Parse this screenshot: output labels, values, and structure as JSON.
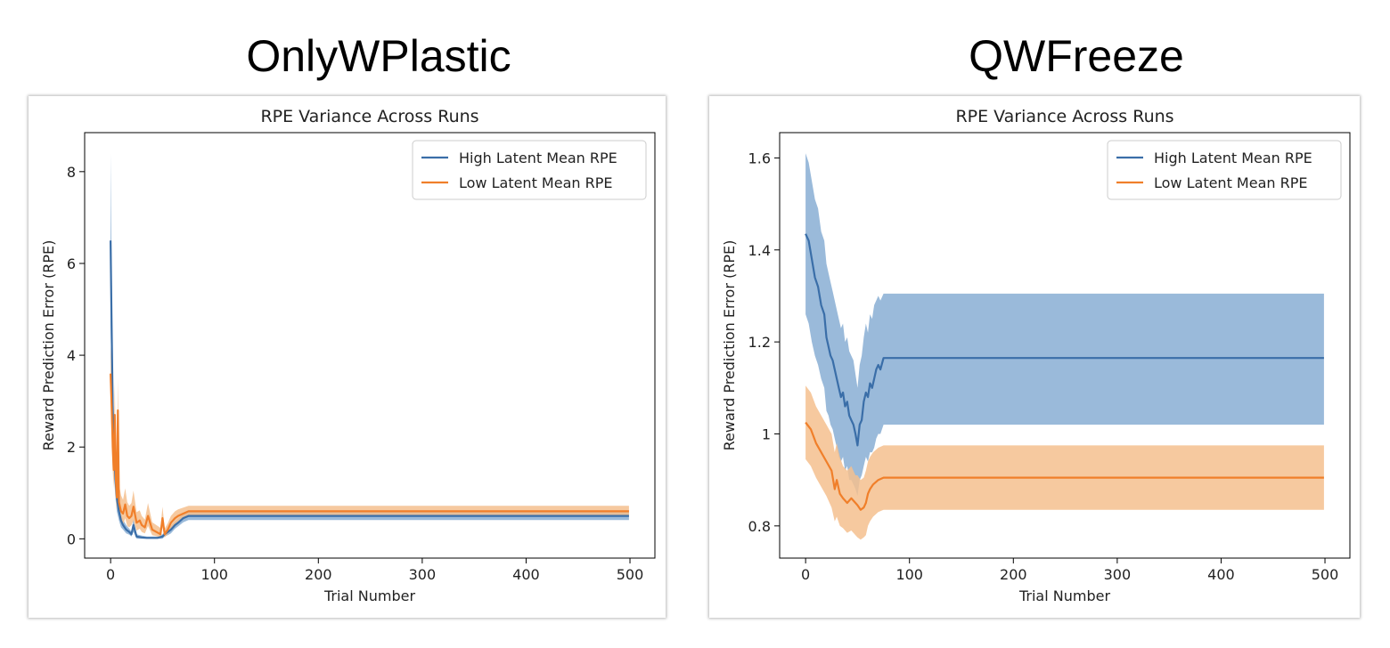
{
  "figure": {
    "left_title": "OnlyWPlastic",
    "right_title": "QWFreeze"
  },
  "colors": {
    "high": "#3a6ea8",
    "low": "#f07f2a",
    "high_band": "#8fb2d6",
    "low_band": "#f5c08e"
  },
  "chart_data": [
    {
      "type": "line",
      "title": "RPE Variance Across Runs",
      "xlabel": "Trial Number",
      "ylabel": "Reward Prediction Error (RPE)",
      "xlim": [
        -25,
        524
      ],
      "ylim": [
        -0.42,
        8.85
      ],
      "xticks": [
        0,
        100,
        200,
        300,
        400,
        500
      ],
      "yticks": [
        0,
        2,
        4,
        6,
        8
      ],
      "legend_position": "top-right",
      "grid": false,
      "series": [
        {
          "name": "High Latent Mean RPE",
          "x": [
            0,
            1,
            2,
            3,
            4,
            5,
            6,
            8,
            10,
            12,
            15,
            18,
            20,
            22,
            25,
            30,
            35,
            40,
            45,
            50,
            52,
            55,
            58,
            60,
            62,
            65,
            70,
            75,
            80,
            100,
            200,
            300,
            400,
            499
          ],
          "y": [
            6.5,
            4.6,
            2.9,
            2.0,
            1.6,
            1.2,
            0.9,
            0.6,
            0.4,
            0.3,
            0.2,
            0.15,
            0.1,
            0.3,
            0.05,
            0.03,
            0.02,
            0.02,
            0.02,
            0.05,
            0.1,
            0.15,
            0.2,
            0.25,
            0.3,
            0.35,
            0.45,
            0.5,
            0.5,
            0.5,
            0.5,
            0.5,
            0.5,
            0.5
          ],
          "band_lower": [
            4.7,
            3.3,
            2.0,
            1.4,
            1.1,
            0.8,
            0.6,
            0.4,
            0.25,
            0.2,
            0.12,
            0.09,
            0.05,
            0.15,
            0.0,
            0.0,
            0.0,
            0.0,
            0.0,
            0.0,
            0.05,
            0.08,
            0.12,
            0.17,
            0.22,
            0.27,
            0.36,
            0.41,
            0.41,
            0.41,
            0.41,
            0.41,
            0.41,
            0.41
          ],
          "band_upper": [
            8.4,
            5.9,
            3.8,
            2.6,
            2.1,
            1.6,
            1.2,
            0.8,
            0.55,
            0.42,
            0.3,
            0.22,
            0.16,
            0.45,
            0.1,
            0.07,
            0.05,
            0.05,
            0.05,
            0.1,
            0.16,
            0.22,
            0.28,
            0.33,
            0.38,
            0.44,
            0.54,
            0.59,
            0.59,
            0.59,
            0.59,
            0.59,
            0.59,
            0.59
          ]
        },
        {
          "name": "Low Latent Mean RPE",
          "x": [
            0,
            1,
            2,
            3,
            4,
            5,
            6,
            7,
            8,
            10,
            12,
            14,
            16,
            18,
            20,
            22,
            25,
            28,
            30,
            33,
            36,
            40,
            44,
            48,
            50,
            52,
            55,
            58,
            60,
            62,
            65,
            70,
            75,
            80,
            100,
            200,
            300,
            400,
            499
          ],
          "y": [
            3.6,
            2.9,
            2.0,
            1.5,
            2.7,
            1.3,
            0.9,
            2.8,
            0.8,
            0.6,
            0.55,
            0.75,
            0.5,
            0.45,
            0.5,
            0.7,
            0.35,
            0.4,
            0.3,
            0.25,
            0.5,
            0.2,
            0.15,
            0.1,
            0.45,
            0.1,
            0.2,
            0.35,
            0.4,
            0.45,
            0.5,
            0.55,
            0.6,
            0.6,
            0.6,
            0.6,
            0.6,
            0.6,
            0.6
          ],
          "band_lower": [
            3.0,
            2.3,
            1.5,
            1.1,
            2.0,
            0.9,
            0.6,
            2.0,
            0.5,
            0.35,
            0.3,
            0.45,
            0.28,
            0.25,
            0.3,
            0.4,
            0.18,
            0.22,
            0.15,
            0.12,
            0.28,
            0.08,
            0.06,
            0.03,
            0.25,
            0.03,
            0.1,
            0.22,
            0.27,
            0.32,
            0.38,
            0.44,
            0.49,
            0.49,
            0.49,
            0.49,
            0.49,
            0.49,
            0.49
          ],
          "band_upper": [
            4.2,
            3.5,
            2.6,
            2.0,
            3.4,
            1.8,
            1.3,
            3.5,
            1.2,
            0.95,
            0.85,
            1.1,
            0.8,
            0.72,
            0.78,
            1.05,
            0.58,
            0.62,
            0.5,
            0.42,
            0.78,
            0.36,
            0.3,
            0.24,
            0.7,
            0.22,
            0.34,
            0.5,
            0.55,
            0.6,
            0.64,
            0.68,
            0.72,
            0.72,
            0.72,
            0.72,
            0.72,
            0.72,
            0.72
          ]
        }
      ]
    },
    {
      "type": "line",
      "title": "RPE Variance Across Runs",
      "xlabel": "Trial Number",
      "ylabel": "Reward Prediction Error (RPE)",
      "xlim": [
        -25,
        524
      ],
      "ylim": [
        0.73,
        1.655
      ],
      "xticks": [
        0,
        100,
        200,
        300,
        400,
        500
      ],
      "yticks": [
        0.8,
        1.0,
        1.2,
        1.4,
        1.6
      ],
      "legend_position": "top-right",
      "grid": false,
      "series": [
        {
          "name": "High Latent Mean RPE",
          "x": [
            0,
            3,
            6,
            9,
            12,
            15,
            18,
            20,
            22,
            24,
            26,
            28,
            30,
            32,
            34,
            36,
            38,
            40,
            42,
            44,
            46,
            48,
            50,
            52,
            54,
            56,
            58,
            60,
            62,
            64,
            66,
            68,
            70,
            72,
            75,
            80,
            100,
            200,
            300,
            400,
            499
          ],
          "y": [
            1.435,
            1.42,
            1.38,
            1.34,
            1.32,
            1.28,
            1.26,
            1.21,
            1.19,
            1.17,
            1.16,
            1.14,
            1.12,
            1.1,
            1.08,
            1.09,
            1.06,
            1.07,
            1.04,
            1.03,
            1.02,
            1.0,
            0.975,
            1.02,
            1.03,
            1.07,
            1.09,
            1.08,
            1.11,
            1.1,
            1.12,
            1.14,
            1.15,
            1.14,
            1.165,
            1.165,
            1.165,
            1.165,
            1.165,
            1.165,
            1.165
          ],
          "band_lower": [
            1.26,
            1.24,
            1.2,
            1.17,
            1.15,
            1.12,
            1.1,
            1.05,
            1.04,
            1.02,
            1.01,
            0.99,
            0.97,
            0.95,
            0.94,
            0.95,
            0.92,
            0.93,
            0.9,
            0.9,
            0.89,
            0.88,
            0.865,
            0.9,
            0.91,
            0.93,
            0.95,
            0.94,
            0.96,
            0.96,
            0.97,
            0.99,
            1.0,
            1.0,
            1.02,
            1.02,
            1.02,
            1.02,
            1.02,
            1.02,
            1.02
          ],
          "band_upper": [
            1.61,
            1.59,
            1.55,
            1.51,
            1.49,
            1.44,
            1.42,
            1.37,
            1.35,
            1.33,
            1.31,
            1.29,
            1.27,
            1.25,
            1.23,
            1.24,
            1.2,
            1.21,
            1.18,
            1.17,
            1.16,
            1.13,
            1.1,
            1.15,
            1.17,
            1.21,
            1.24,
            1.22,
            1.26,
            1.25,
            1.28,
            1.29,
            1.3,
            1.29,
            1.305,
            1.305,
            1.305,
            1.305,
            1.305,
            1.305,
            1.305
          ]
        },
        {
          "name": "Low Latent Mean RPE",
          "x": [
            0,
            5,
            10,
            15,
            20,
            25,
            28,
            30,
            33,
            36,
            40,
            44,
            48,
            50,
            53,
            56,
            58,
            60,
            62,
            65,
            70,
            75,
            80,
            100,
            200,
            300,
            400,
            499
          ],
          "y": [
            1.025,
            1.01,
            0.98,
            0.96,
            0.94,
            0.92,
            0.88,
            0.9,
            0.87,
            0.86,
            0.85,
            0.86,
            0.85,
            0.845,
            0.835,
            0.84,
            0.85,
            0.87,
            0.88,
            0.89,
            0.9,
            0.905,
            0.905,
            0.905,
            0.905,
            0.905,
            0.905,
            0.905
          ],
          "band_lower": [
            0.945,
            0.93,
            0.905,
            0.885,
            0.865,
            0.84,
            0.81,
            0.82,
            0.8,
            0.795,
            0.785,
            0.79,
            0.78,
            0.775,
            0.77,
            0.775,
            0.78,
            0.8,
            0.81,
            0.82,
            0.83,
            0.835,
            0.835,
            0.835,
            0.835,
            0.835,
            0.835,
            0.835
          ],
          "band_upper": [
            1.105,
            1.09,
            1.06,
            1.04,
            1.02,
            1.0,
            0.96,
            0.98,
            0.95,
            0.93,
            0.92,
            0.93,
            0.91,
            0.91,
            0.9,
            0.905,
            0.92,
            0.94,
            0.95,
            0.96,
            0.97,
            0.975,
            0.975,
            0.975,
            0.975,
            0.975,
            0.975,
            0.975
          ]
        }
      ]
    }
  ]
}
